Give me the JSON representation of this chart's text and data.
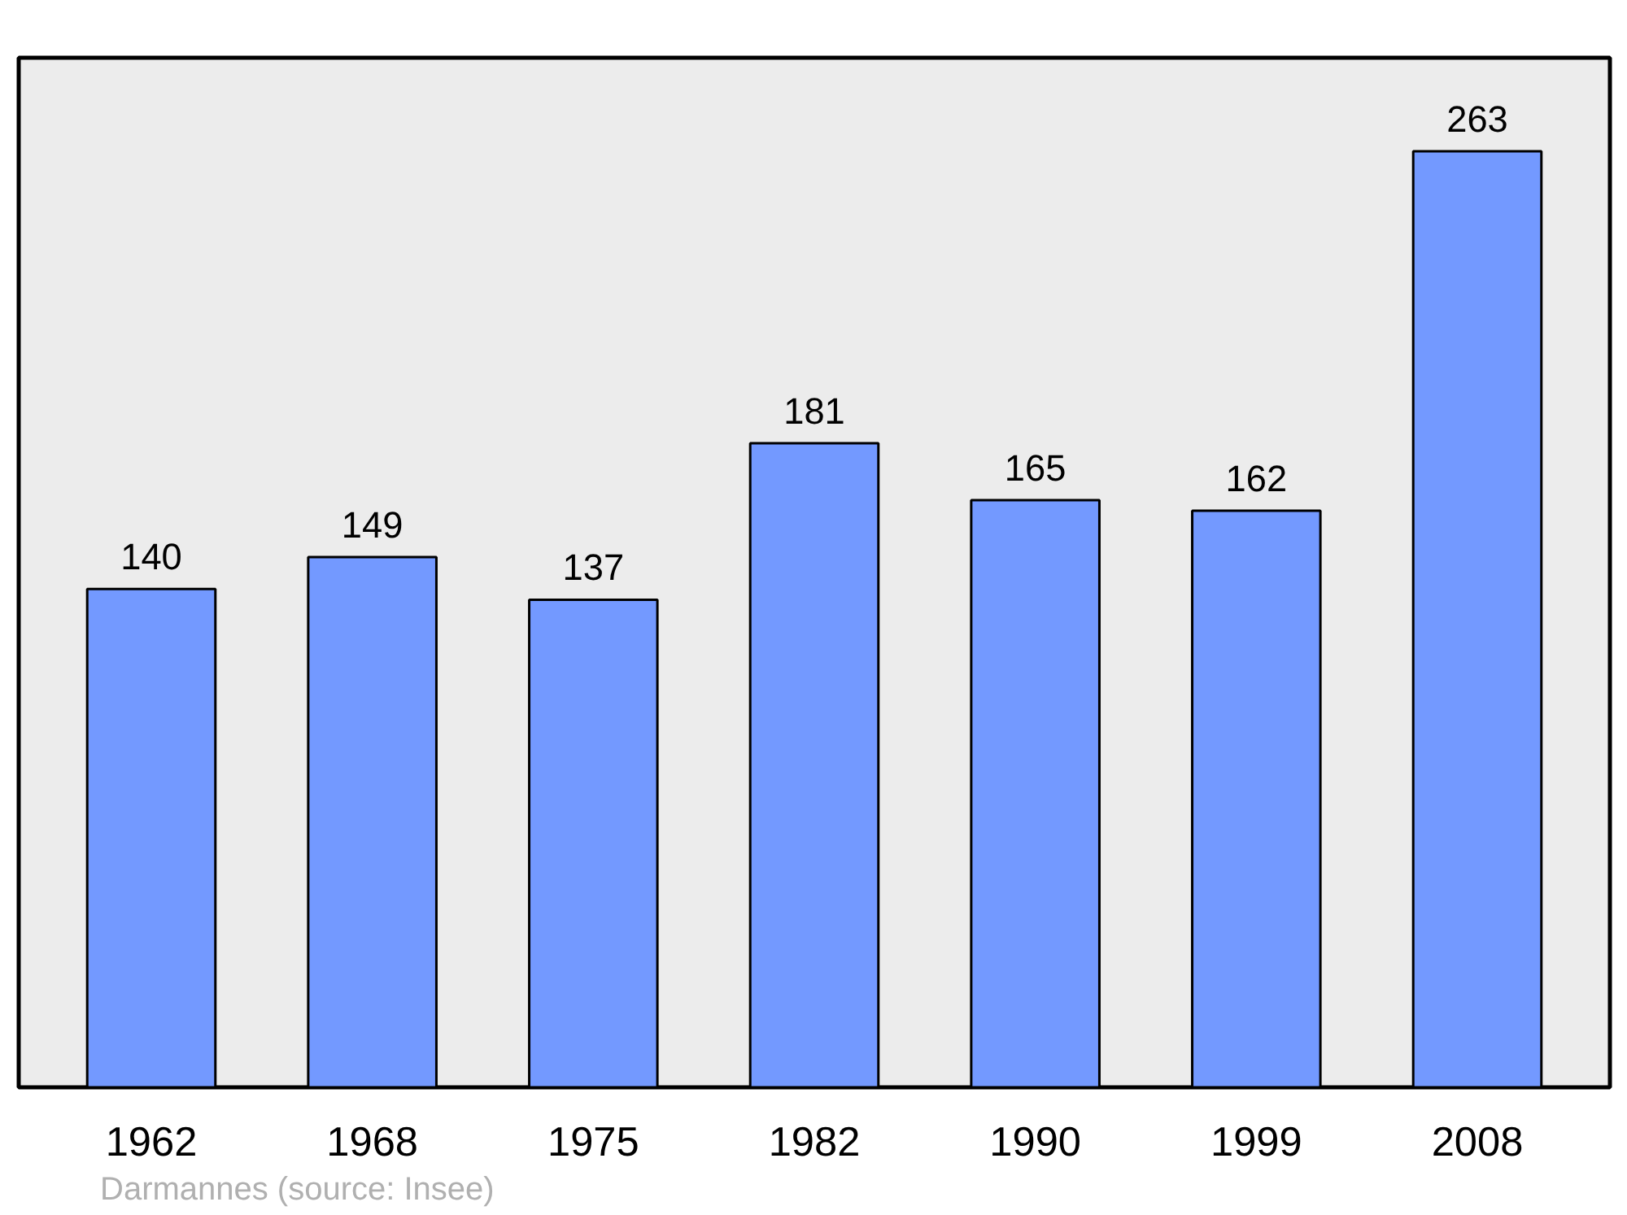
{
  "chart_data": {
    "type": "bar",
    "categories": [
      "1962",
      "1968",
      "1975",
      "1982",
      "1990",
      "1999",
      "2008"
    ],
    "values": [
      140,
      149,
      137,
      181,
      165,
      162,
      263
    ],
    "color": "#7399ff",
    "data_labels": true,
    "grid": false,
    "annotations": [
      "Darmannes    (source: Insee)"
    ]
  }
}
